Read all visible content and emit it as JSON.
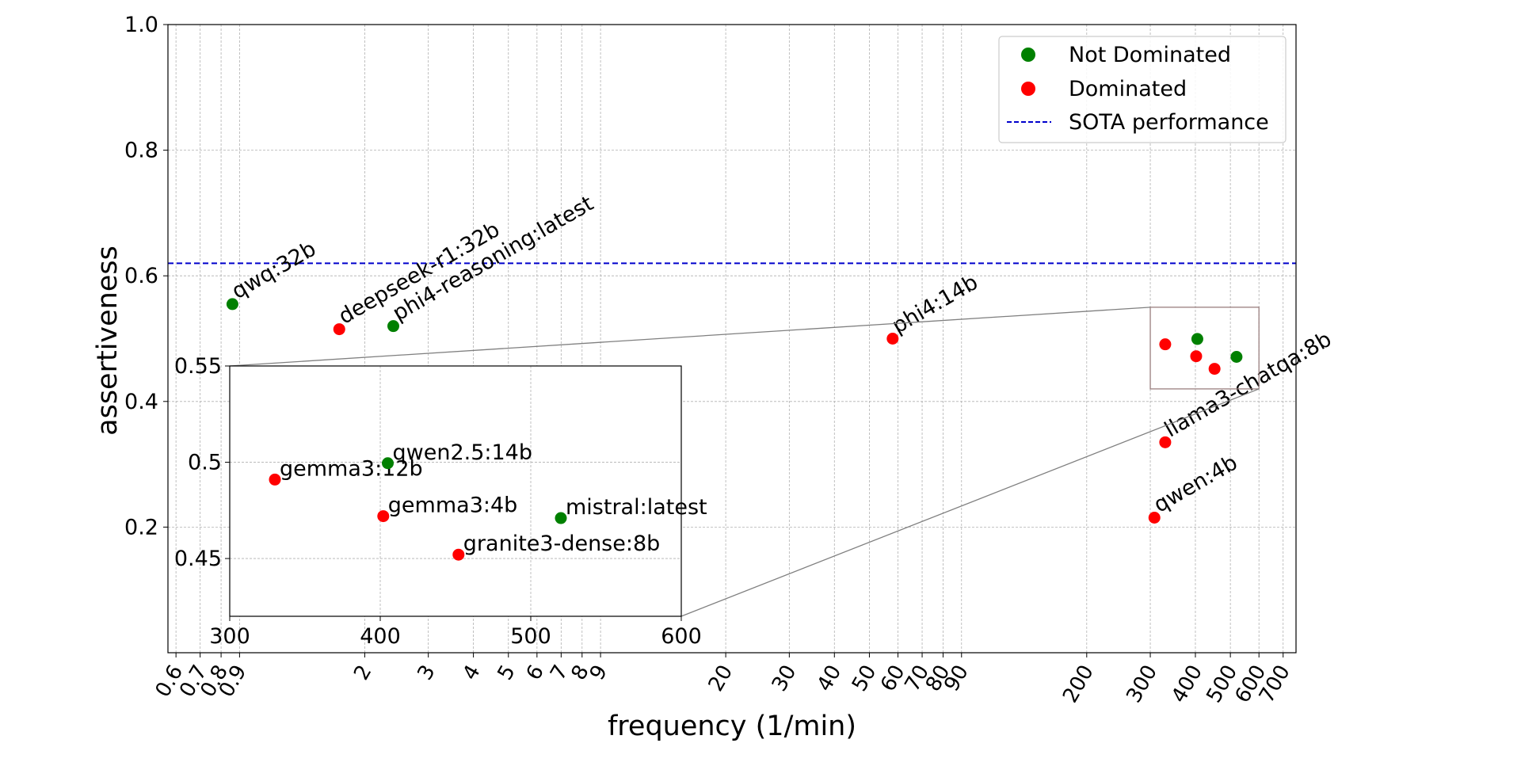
{
  "chart_data": {
    "type": "scatter",
    "xlabel": "frequency (1/min)",
    "ylabel": "assertiveness",
    "xscale": "log",
    "xlim": [
      0.57,
      760
    ],
    "ylim": [
      0.0,
      1.0
    ],
    "grid": true,
    "legend_position": "top-right",
    "x_ticks": [
      0.6,
      0.7,
      0.8,
      0.9,
      2,
      3,
      4,
      5,
      6,
      7,
      8,
      9,
      20,
      30,
      40,
      50,
      60,
      70,
      80,
      90,
      200,
      300,
      400,
      500,
      600,
      700
    ],
    "y_ticks": [
      0.2,
      0.4,
      0.6,
      0.8,
      1.0
    ],
    "y_tick_labels": [
      "0.2",
      "0.4",
      "0.6",
      "0.8",
      "1.0"
    ],
    "legend": {
      "not_dominated": "Not Dominated",
      "dominated": "Dominated",
      "sota": "SOTA performance"
    },
    "colors": {
      "not_dominated": "#008000",
      "dominated": "#ff0000",
      "sota": "#0000cc"
    },
    "sota_value": 0.62,
    "points": [
      {
        "label": "qwq:32b",
        "x": 0.86,
        "y": 0.555,
        "status": "not_dominated"
      },
      {
        "label": "deepseek-r1:32b",
        "x": 1.7,
        "y": 0.515,
        "status": "dominated"
      },
      {
        "label": "phi4-reasoning:latest",
        "x": 2.4,
        "y": 0.52,
        "status": "not_dominated"
      },
      {
        "label": "phi4:14b",
        "x": 58,
        "y": 0.5,
        "status": "dominated"
      },
      {
        "label": "llama3-chatqa:8b",
        "x": 330,
        "y": 0.335,
        "status": "dominated"
      },
      {
        "label": "qwen:4b",
        "x": 308,
        "y": 0.215,
        "status": "dominated"
      },
      {
        "label": "gemma3:12b",
        "x": 330,
        "y": 0.491,
        "status": "dominated"
      },
      {
        "label": "qwen2.5:14b",
        "x": 405,
        "y": 0.4995,
        "status": "not_dominated"
      },
      {
        "label": "gemma3:4b",
        "x": 402,
        "y": 0.472,
        "status": "dominated"
      },
      {
        "label": "mistral:latest",
        "x": 520,
        "y": 0.471,
        "status": "not_dominated"
      },
      {
        "label": "granite3-dense:8b",
        "x": 452,
        "y": 0.452,
        "status": "dominated"
      }
    ],
    "inset": {
      "xlim": [
        300,
        600
      ],
      "ylim": [
        0.42,
        0.55
      ],
      "x_ticks": [
        300,
        400,
        500,
        600
      ],
      "y_ticks": [
        0.45,
        0.5,
        0.55
      ],
      "y_tick_labels": [
        "0.45",
        "0.5",
        "0.55"
      ],
      "labeled_points": [
        "gemma3:12b",
        "qwen2.5:14b",
        "gemma3:4b",
        "mistral:latest",
        "granite3-dense:8b"
      ]
    }
  }
}
